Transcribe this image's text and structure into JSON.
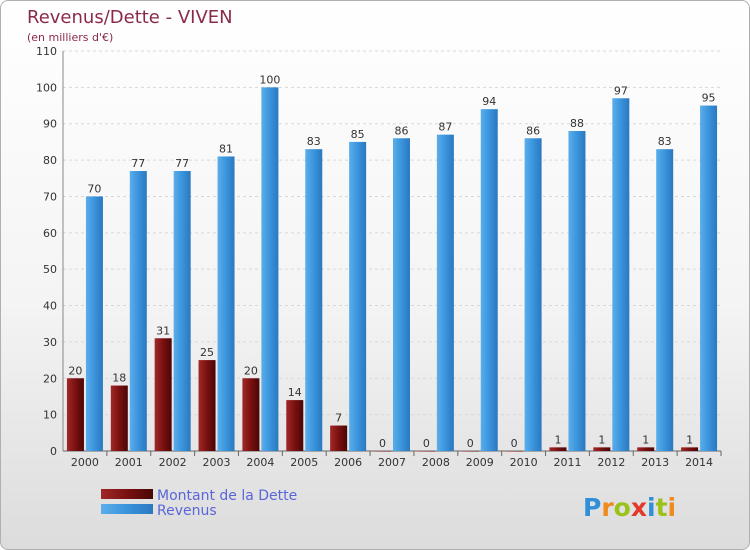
{
  "chart_data": {
    "type": "bar",
    "title": "Revenus/Dette - VIVEN",
    "subtitle": "(en milliers d'€)",
    "categories": [
      "2000",
      "2001",
      "2002",
      "2003",
      "2004",
      "2005",
      "2006",
      "2007",
      "2008",
      "2009",
      "2010",
      "2011",
      "2012",
      "2013",
      "2014"
    ],
    "series": [
      {
        "name": "Montant de la Dette",
        "color": "#7a1010",
        "values": [
          20,
          18,
          31,
          25,
          20,
          14,
          7,
          0,
          0,
          0,
          0,
          1,
          1,
          1,
          1
        ]
      },
      {
        "name": "Revenus",
        "color": "#3a94dc",
        "values": [
          70,
          77,
          77,
          81,
          100,
          83,
          85,
          86,
          87,
          94,
          86,
          88,
          97,
          83,
          95
        ]
      }
    ],
    "ylim": [
      0,
      110
    ],
    "yticks": [
      0,
      10,
      20,
      30,
      40,
      50,
      60,
      70,
      80,
      90,
      100,
      110
    ],
    "grid": true,
    "legend": "bottom-left"
  },
  "logo": {
    "letters": [
      "P",
      "r",
      "o",
      "x",
      "i",
      "t",
      "i"
    ],
    "colors": [
      "#2f8fd8",
      "#f08a1c",
      "#9ac21a",
      "#e23a2a",
      "#2f8fd8",
      "#9ac21a",
      "#f08a1c"
    ]
  }
}
